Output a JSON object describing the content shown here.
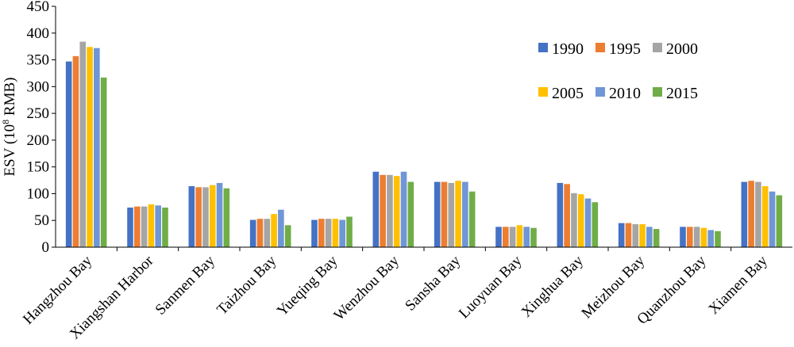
{
  "chart_data": {
    "type": "bar",
    "title": "",
    "xlabel": "",
    "ylabel": "ESV (10",
    "ylabel_sup": "8",
    "ylabel_suffix": " RMB)",
    "ylim": [
      0,
      450
    ],
    "yticks": [
      0,
      50,
      100,
      150,
      200,
      250,
      300,
      350,
      400,
      450
    ],
    "grid": false,
    "legend_position": "top-right",
    "categories": [
      "Hangzhou Bay",
      "Xiangshan Harbor",
      "Sanmen Bay",
      "Taizhou Bay",
      "Yueqing Bay",
      "Wenzhou Bay",
      "Sansha Bay",
      "Luoyuan Bay",
      "Xinghua Bay",
      "Meizhou Bay",
      "Quanzhou Bay",
      "Xiamen Bay"
    ],
    "series": [
      {
        "name": "1990",
        "color": "#4472c4",
        "values": [
          347,
          74,
          114,
          51,
          51,
          141,
          122,
          38,
          120,
          45,
          38,
          122
        ]
      },
      {
        "name": "1995",
        "color": "#ed7d31",
        "values": [
          357,
          76,
          112,
          53,
          53,
          135,
          122,
          38,
          118,
          45,
          38,
          124
        ]
      },
      {
        "name": "2000",
        "color": "#a5a5a5",
        "values": [
          384,
          76,
          112,
          53,
          53,
          135,
          120,
          38,
          101,
          43,
          38,
          122
        ]
      },
      {
        "name": "2005",
        "color": "#ffc000",
        "values": [
          374,
          80,
          116,
          62,
          53,
          133,
          124,
          41,
          99,
          43,
          36,
          114
        ]
      },
      {
        "name": "2010",
        "color": "#6f96d6",
        "values": [
          372,
          78,
          120,
          70,
          51,
          141,
          122,
          38,
          91,
          38,
          32,
          104
        ]
      },
      {
        "name": "2015",
        "color": "#70ad47",
        "values": [
          317,
          74,
          110,
          41,
          57,
          122,
          104,
          36,
          84,
          34,
          30,
          97
        ]
      }
    ]
  }
}
